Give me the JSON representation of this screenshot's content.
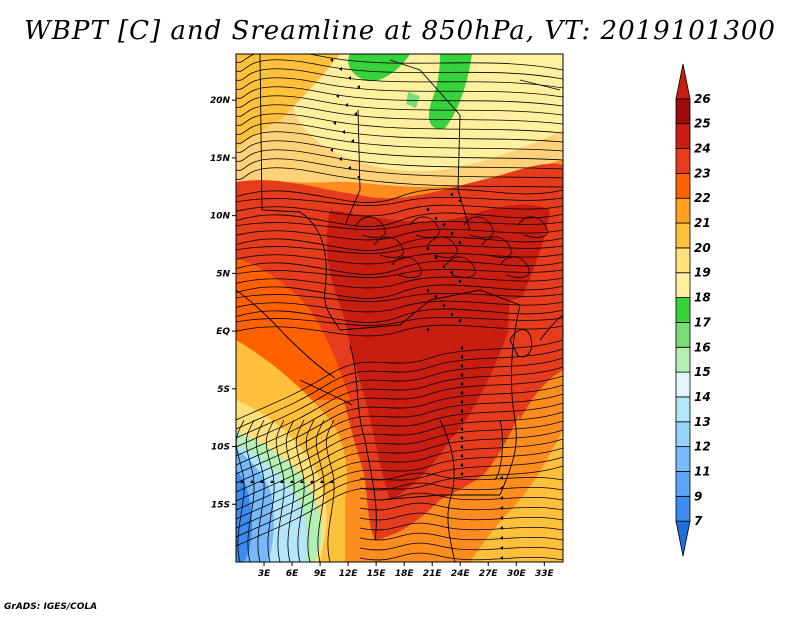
{
  "title": "WBPT [C] and Sreamline at 850hPa, VT: 2019101300",
  "footer": "GrADS: IGES/COLA",
  "chart_data": {
    "type": "heatmap",
    "variable": "WBPT [C]",
    "overlay": "streamlines",
    "level": "850hPa",
    "valid_time": "2019101300",
    "lon_range": [
      0,
      35
    ],
    "lat_range": [
      -20,
      24
    ],
    "x_ticks": [
      "3E",
      "6E",
      "9E",
      "12E",
      "15E",
      "18E",
      "21E",
      "24E",
      "27E",
      "30E",
      "33E"
    ],
    "x_tick_values": [
      3,
      6,
      9,
      12,
      15,
      18,
      21,
      24,
      27,
      30,
      33
    ],
    "y_ticks": [
      "20N",
      "15N",
      "10N",
      "5N",
      "EQ",
      "5S",
      "10S",
      "15S"
    ],
    "y_tick_values": [
      20,
      15,
      10,
      5,
      0,
      -5,
      -10,
      -15
    ],
    "colorbar": {
      "levels": [
        "7",
        "9",
        "11",
        "12",
        "13",
        "14",
        "15",
        "16",
        "17",
        "18",
        "19",
        "20",
        "21",
        "22",
        "23",
        "24",
        "25",
        "26"
      ],
      "colors": [
        "#1e6edc",
        "#3c8cf0",
        "#5aa5f5",
        "#78b9fa",
        "#96d2fa",
        "#b4e6fa",
        "#e1f5fa",
        "#b4f0b4",
        "#78dc78",
        "#37d23c",
        "#fff0a0",
        "#ffe07a",
        "#ffc03c",
        "#ffa01e",
        "#ff6000",
        "#e63c1e",
        "#c81e12",
        "#a00a0a",
        "#c81e12"
      ]
    }
  }
}
